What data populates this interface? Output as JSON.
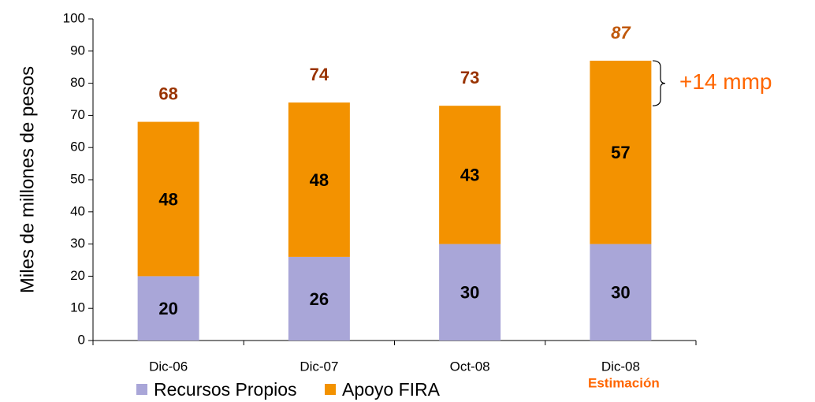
{
  "chart_data": {
    "type": "stacked_bar",
    "y_label": "Miles de millones de pesos",
    "categories": [
      "Dic-06",
      "Dic-07",
      "Oct-08",
      "Dic-08"
    ],
    "category_notes": [
      null,
      null,
      null,
      "Estimación"
    ],
    "series": [
      {
        "name": "Recursos Propios",
        "color": "#a9a6d8",
        "values": [
          20,
          26,
          30,
          30
        ]
      },
      {
        "name": "Apoyo FIRA",
        "color": "#f39200",
        "values": [
          48,
          48,
          43,
          57
        ]
      }
    ],
    "total_labels": [
      68,
      74,
      73,
      87
    ],
    "annotation": "+14 mmp",
    "ylim": [
      0,
      100
    ],
    "yticks": [
      0,
      10,
      20,
      30,
      40,
      50,
      60,
      70,
      80,
      90,
      100
    ],
    "legend": "bottom"
  }
}
